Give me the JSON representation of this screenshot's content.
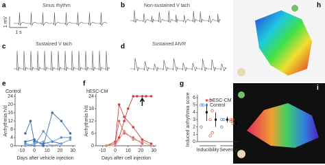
{
  "traces": [
    {
      "label": "a",
      "title": "Sinus rhythm",
      "scale_y": "1 mV",
      "scale_x": "1 s"
    },
    {
      "label": "b",
      "title": "Non-sustained V tach"
    },
    {
      "label": "c",
      "title": "Sustained V tach"
    },
    {
      "label": "d",
      "title": "Sustained AIVR"
    }
  ],
  "maps": [
    {
      "label": "h"
    },
    {
      "label": "i"
    }
  ],
  "chart_data": [
    {
      "type": "line",
      "label": "e",
      "title": "Control",
      "ylabel": "Arrhythmia h/d",
      "xlabel": "Days after vehicle injection",
      "xlim": [
        -15,
        32
      ],
      "ylim": [
        0,
        24
      ],
      "xticks": [
        -10,
        0,
        10,
        20,
        30
      ],
      "yticks": [
        0,
        4,
        8,
        12,
        16,
        20,
        24
      ],
      "series": [
        {
          "color": "#3a6fb0",
          "x": [
            -7,
            -3,
            0,
            7,
            14,
            21,
            28
          ],
          "values": [
            6,
            12,
            2,
            1,
            2,
            1,
            3
          ]
        },
        {
          "color": "#3a6fb0",
          "x": [
            -7,
            0,
            7,
            14,
            21,
            28
          ],
          "values": [
            2,
            3,
            0,
            16,
            12,
            6
          ]
        },
        {
          "color": "#5b8fd0",
          "x": [
            -7,
            0,
            7,
            14,
            21,
            28
          ],
          "values": [
            1,
            0,
            7,
            2,
            4,
            4
          ]
        },
        {
          "color": "#7aa6dc",
          "x": [
            -7,
            0,
            7,
            14,
            21,
            28
          ],
          "values": [
            0,
            1,
            2,
            0,
            1,
            3
          ]
        }
      ]
    },
    {
      "type": "line",
      "label": "f",
      "title": "hESC-CM",
      "ylabel": "Arrhythmia h/d",
      "xlabel": "Days after cell injection",
      "xlim": [
        -15,
        32
      ],
      "ylim": [
        0,
        24
      ],
      "xticks": [
        -10,
        0,
        10,
        20,
        30
      ],
      "yticks": [
        0,
        6,
        12,
        18,
        24
      ],
      "series": [
        {
          "color": "#c8403a",
          "x": [
            -7,
            0,
            3,
            7,
            10,
            14,
            17,
            21,
            24,
            28
          ],
          "values": [
            0,
            1,
            4,
            12,
            18,
            24,
            24,
            24,
            24,
            24
          ]
        },
        {
          "color": "#c8403a",
          "x": [
            -7,
            0,
            3,
            7,
            14,
            21,
            28
          ],
          "values": [
            0,
            2,
            20,
            14,
            9,
            3,
            1
          ]
        },
        {
          "color": "#d86a64",
          "x": [
            -7,
            0,
            3,
            7,
            14,
            21
          ],
          "values": [
            0,
            1,
            12,
            6,
            4,
            1
          ]
        },
        {
          "color": "#e08c86",
          "x": [
            -7,
            0,
            7,
            14,
            21,
            28
          ],
          "values": [
            0,
            0,
            7,
            3,
            2,
            0
          ]
        }
      ]
    },
    {
      "type": "dotplot",
      "label": "g",
      "ylabel": "Induced arrhythmia score",
      "categories": [
        "Inducibility",
        "Severity"
      ],
      "ylim": [
        0,
        6
      ],
      "yticks": [
        0,
        1,
        2,
        3,
        4,
        5,
        6
      ],
      "series": [
        {
          "name": "hESC-CM",
          "color": "#d9453a",
          "points": [
            [
              5.6,
              4.2,
              3,
              1.2,
              0.8
            ],
            [
              3,
              3,
              2.8,
              2.5
            ]
          ],
          "values": [
            3,
            2.5
          ],
          "errors": [
            1,
            0.3
          ]
        },
        {
          "name": "Control",
          "color": "#3a7ac4",
          "points": [
            [
              5,
              5,
              2
            ],
            [
              3,
              3,
              2
            ]
          ],
          "values": [
            4,
            3
          ],
          "errors": [
            1.2,
            0.4
          ]
        }
      ]
    }
  ]
}
